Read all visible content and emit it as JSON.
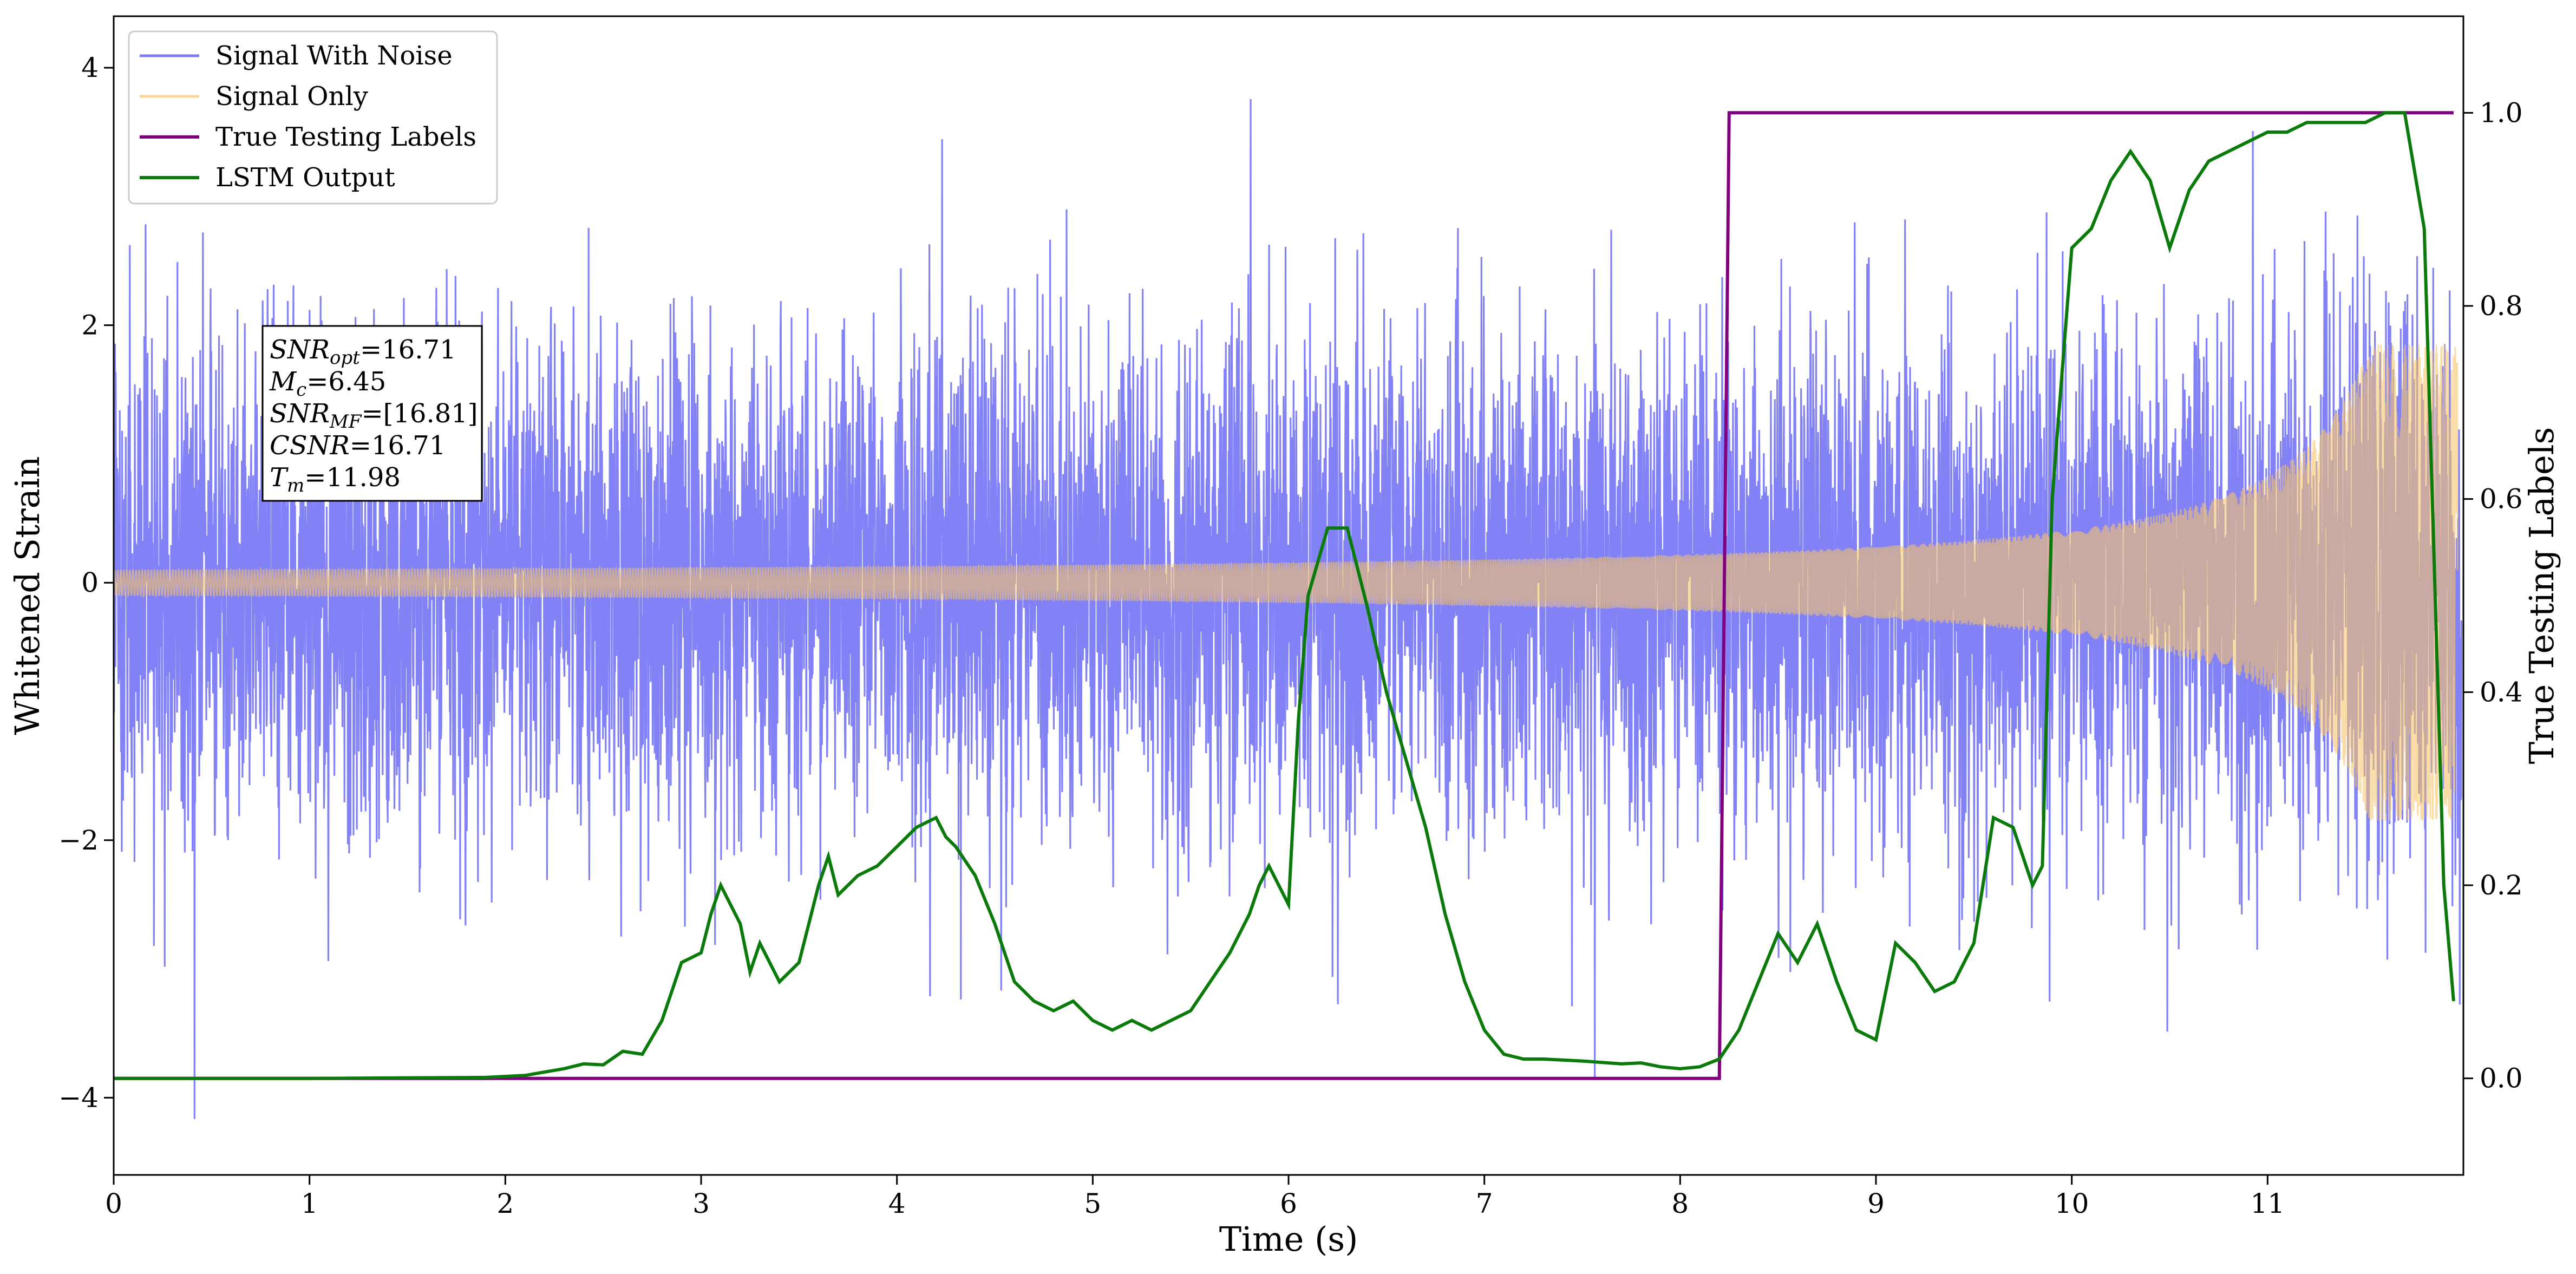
{
  "chart_data": {
    "type": "line",
    "xlabel": "Time (s)",
    "ylabel_left": "Whitened Strain",
    "ylabel_right": "True Testing Labels",
    "xlim": [
      0,
      12.0
    ],
    "ylim_left": [
      -4.6,
      4.4
    ],
    "ylim_right": [
      -0.1,
      1.1
    ],
    "x_ticks": [
      0,
      1,
      2,
      3,
      4,
      5,
      6,
      7,
      8,
      9,
      10,
      11
    ],
    "x_tick_labels": [
      "0",
      "1",
      "2",
      "3",
      "4",
      "5",
      "6",
      "7",
      "8",
      "9",
      "10",
      "11"
    ],
    "y_ticks_left": [
      -4,
      -2,
      0,
      2,
      4
    ],
    "y_tick_labels_left": [
      "−4",
      "−2",
      "0",
      "2",
      "4"
    ],
    "y_ticks_right": [
      0.0,
      0.2,
      0.4,
      0.6,
      0.8,
      1.0
    ],
    "y_tick_labels_right": [
      "0.0",
      "0.2",
      "0.4",
      "0.6",
      "0.8",
      "1.0"
    ],
    "grid": false,
    "legend_position": "top-left",
    "series": [
      {
        "name": "Signal With Noise",
        "axis": "left",
        "color": "#7b7bf5",
        "style": "dense noisy oscillation, roughly within ±3.8"
      },
      {
        "name": "Signal Only",
        "axis": "left",
        "color": "#f6c46c",
        "style": "chirp with amplitude growing from about 0.05 to about 1.8 near 12 s"
      },
      {
        "name": "True Testing Labels",
        "axis": "right",
        "color": "#800080",
        "x": [
          0,
          8.2,
          8.25,
          11.95
        ],
        "y": [
          0,
          0,
          1,
          1
        ]
      },
      {
        "name": "LSTM Output",
        "axis": "right",
        "color": "#0a7a0a",
        "x": [
          0,
          1,
          1.9,
          2.1,
          2.3,
          2.4,
          2.5,
          2.6,
          2.7,
          2.8,
          2.9,
          3.0,
          3.05,
          3.1,
          3.2,
          3.25,
          3.3,
          3.4,
          3.5,
          3.6,
          3.65,
          3.7,
          3.8,
          3.9,
          4.0,
          4.1,
          4.2,
          4.25,
          4.3,
          4.4,
          4.5,
          4.6,
          4.7,
          4.8,
          4.9,
          5.0,
          5.1,
          5.2,
          5.3,
          5.4,
          5.5,
          5.6,
          5.7,
          5.8,
          5.85,
          5.9,
          6.0,
          6.05,
          6.1,
          6.2,
          6.3,
          6.4,
          6.5,
          6.6,
          6.7,
          6.8,
          6.9,
          7.0,
          7.1,
          7.2,
          7.3,
          7.5,
          7.7,
          7.8,
          7.9,
          8.0,
          8.1,
          8.2,
          8.3,
          8.4,
          8.5,
          8.6,
          8.7,
          8.8,
          8.9,
          9.0,
          9.1,
          9.2,
          9.3,
          9.4,
          9.5,
          9.6,
          9.7,
          9.8,
          9.85,
          9.9,
          10.0,
          10.1,
          10.2,
          10.3,
          10.4,
          10.5,
          10.6,
          10.7,
          10.8,
          10.9,
          11.0,
          11.1,
          11.2,
          11.3,
          11.4,
          11.5,
          11.6,
          11.7,
          11.8,
          11.9,
          11.95
        ],
        "y": [
          0.0,
          0.0,
          0.001,
          0.003,
          0.01,
          0.015,
          0.014,
          0.028,
          0.025,
          0.06,
          0.12,
          0.13,
          0.17,
          0.2,
          0.16,
          0.11,
          0.14,
          0.1,
          0.12,
          0.2,
          0.23,
          0.19,
          0.21,
          0.22,
          0.24,
          0.26,
          0.27,
          0.25,
          0.24,
          0.21,
          0.16,
          0.1,
          0.08,
          0.07,
          0.08,
          0.06,
          0.05,
          0.06,
          0.05,
          0.06,
          0.07,
          0.1,
          0.13,
          0.17,
          0.2,
          0.22,
          0.18,
          0.37,
          0.5,
          0.57,
          0.57,
          0.49,
          0.4,
          0.33,
          0.26,
          0.17,
          0.1,
          0.05,
          0.025,
          0.02,
          0.02,
          0.018,
          0.015,
          0.016,
          0.012,
          0.01,
          0.012,
          0.02,
          0.05,
          0.1,
          0.15,
          0.12,
          0.16,
          0.1,
          0.05,
          0.04,
          0.14,
          0.12,
          0.09,
          0.1,
          0.14,
          0.27,
          0.26,
          0.2,
          0.22,
          0.6,
          0.86,
          0.88,
          0.93,
          0.96,
          0.93,
          0.86,
          0.92,
          0.95,
          0.96,
          0.97,
          0.98,
          0.98,
          0.99,
          0.99,
          0.99,
          0.99,
          1.0,
          1.0,
          0.88,
          0.2,
          0.08
        ]
      }
    ]
  },
  "info_box": {
    "snr_opt": {
      "base": "SNR",
      "sub": "opt",
      "value": "=16.71"
    },
    "mc": {
      "base": "M",
      "sub": "c",
      "value": "=6.45"
    },
    "snr_mf": {
      "base": "SNR",
      "sub": "MF",
      "value": "=[16.81]"
    },
    "csnr": {
      "base": "CSNR",
      "value": "=16.71"
    },
    "tm": {
      "base": "T",
      "sub": "m",
      "value": "=11.98"
    }
  }
}
